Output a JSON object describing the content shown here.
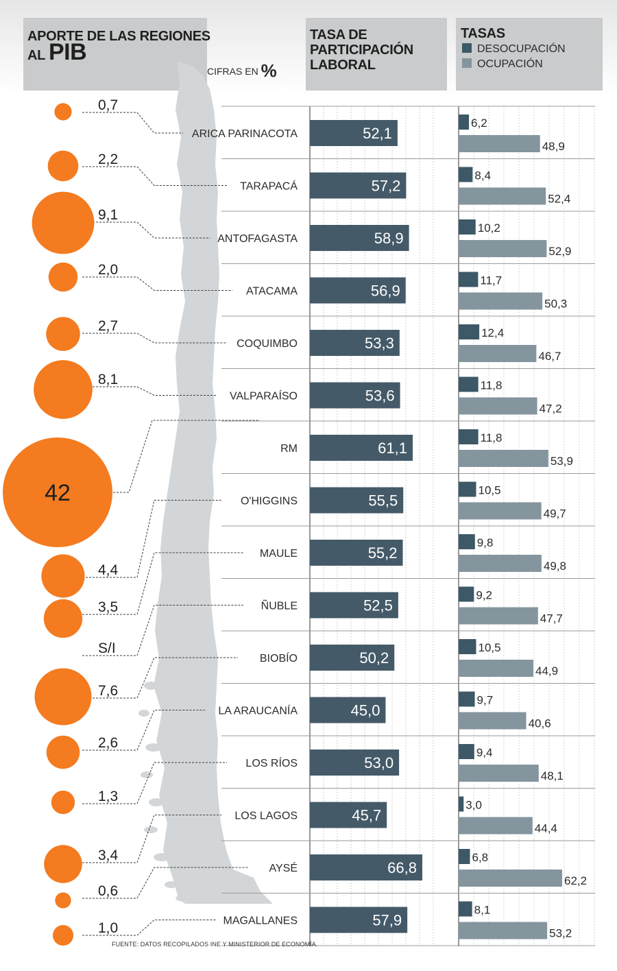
{
  "headers": {
    "pib_line1": "APORTE DE LAS REGIONES",
    "pib_line2_small": "AL",
    "pib_line2_big": "PIB",
    "cifras_label": "CIFRAS EN",
    "cifras_unit": "%",
    "tasa_line1": "TASA DE",
    "tasa_line2": "PARTICIPACIÓN",
    "tasa_line3": "LABORAL",
    "tasas_title": "TASAS",
    "legend_desocupacion": "DESOCUPACIÓN",
    "legend_ocupacion": "OCUPACIÓN"
  },
  "colors": {
    "orange": "#f47b20",
    "participacion": "#445a68",
    "desocupacion": "#3d5866",
    "ocupacion": "#84959e",
    "map": "#d3d6d8",
    "header_bg": "#c9cbcc"
  },
  "source": "FUENTE: DATOS RECOPILADOS INE Y MINISTERIOR DE ECONOMÍA.",
  "chart_data": [
    {
      "type": "scatter",
      "title": "APORTE DE LAS REGIONES AL PIB",
      "categories": [
        "ARICA PARINACOTA",
        "TARAPACÁ",
        "ANTOFAGASTA",
        "ATACAMA",
        "COQUIMBO",
        "VALPARAÍSO",
        "RM",
        "O'HIGGINS",
        "MAULE",
        "ÑUBLE",
        "BIOBÍO",
        "LA ARAUCANÍA",
        "LOS RÍOS",
        "LOS LAGOS",
        "AYSÉ",
        "MAGALLANES"
      ],
      "values": [
        0.7,
        2.2,
        9.1,
        2.0,
        2.7,
        8.1,
        42,
        4.4,
        3.5,
        null,
        7.6,
        2.6,
        1.3,
        3.4,
        0.6,
        1.0
      ],
      "labels": [
        "0,7",
        "2,2",
        "9,1",
        "2,0",
        "2,7",
        "8,1",
        "42",
        "4,4",
        "3,5",
        "S/I",
        "7,6",
        "2,6",
        "1,3",
        "3,4",
        "0,6",
        "1,0"
      ]
    },
    {
      "type": "bar",
      "title": "TASA DE PARTICIPACIÓN LABORAL",
      "categories": [
        "ARICA PARINACOTA",
        "TARAPACÁ",
        "ANTOFAGASTA",
        "ATACAMA",
        "COQUIMBO",
        "VALPARAÍSO",
        "RM",
        "O'HIGGINS",
        "MAULE",
        "ÑUBLE",
        "BIOBÍO",
        "LA ARAUCANÍA",
        "LOS RÍOS",
        "LOS LAGOS",
        "AYSÉ",
        "MAGALLANES"
      ],
      "values": [
        52.1,
        57.2,
        58.9,
        56.9,
        53.3,
        53.6,
        61.1,
        55.5,
        55.2,
        52.5,
        50.2,
        45.0,
        53.0,
        45.7,
        66.8,
        57.9
      ],
      "labels": [
        "52,1",
        "57,2",
        "58,9",
        "56,9",
        "53,3",
        "53,6",
        "61,1",
        "55,5",
        "55,2",
        "52,5",
        "50,2",
        "45,0",
        "53,0",
        "45,7",
        "66,8",
        "57,9"
      ]
    },
    {
      "type": "bar",
      "title": "TASAS",
      "categories": [
        "ARICA PARINACOTA",
        "TARAPACÁ",
        "ANTOFAGASTA",
        "ATACAMA",
        "COQUIMBO",
        "VALPARAÍSO",
        "RM",
        "O'HIGGINS",
        "MAULE",
        "ÑUBLE",
        "BIOBÍO",
        "LA ARAUCANÍA",
        "LOS RÍOS",
        "LOS LAGOS",
        "AYSÉ",
        "MAGALLANES"
      ],
      "series": [
        {
          "name": "DESOCUPACIÓN",
          "values": [
            6.2,
            8.4,
            10.2,
            11.7,
            12.4,
            11.8,
            11.8,
            10.5,
            9.8,
            9.2,
            10.5,
            9.7,
            9.4,
            3.0,
            6.8,
            8.1
          ],
          "labels": [
            "6,2",
            "8,4",
            "10,2",
            "11,7",
            "12,4",
            "11,8",
            "11,8",
            "10,5",
            "9,8",
            "9,2",
            "10,5",
            "9,7",
            "9,4",
            "3,0",
            "6,8",
            "8,1"
          ]
        },
        {
          "name": "OCUPACIÓN",
          "values": [
            48.9,
            52.4,
            52.9,
            50.3,
            46.7,
            47.2,
            53.9,
            49.7,
            49.8,
            47.7,
            44.9,
            40.6,
            48.1,
            44.4,
            62.2,
            53.2
          ],
          "labels": [
            "48,9",
            "52,4",
            "52,9",
            "50,3",
            "46,7",
            "47,2",
            "53,9",
            "49,7",
            "49,8",
            "47,7",
            "44,9",
            "40,6",
            "48,1",
            "44,4",
            "62,2",
            "53,2"
          ]
        }
      ]
    }
  ]
}
